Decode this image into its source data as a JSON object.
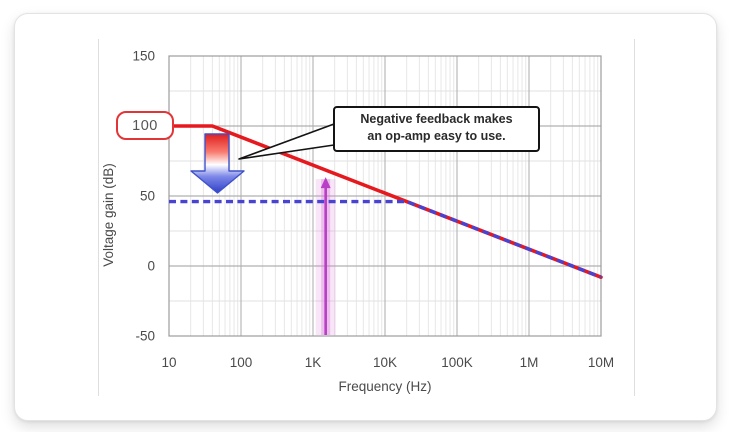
{
  "colors": {
    "open_loop_red": "#e6191f",
    "closed_loop_blue": "#4943d2",
    "signal_magenta": "#b83fc6",
    "signal_halo": "#e9a9e9",
    "grid_major": "#b9b9b9",
    "grid_minor": "#e7e7e7",
    "plot_border": "#9c9c9c",
    "badge_border": "#e23538",
    "callout_border": "#141414"
  },
  "chart_data": {
    "type": "line",
    "title": "",
    "x_axis": {
      "label": "Frequency (Hz)",
      "scale": "log",
      "range_hz": [
        10,
        10000000
      ],
      "ticks": [
        "10",
        "100",
        "1K",
        "10K",
        "100K",
        "1M",
        "10M"
      ]
    },
    "y_axis": {
      "label": "Voltage gain (dB)",
      "range_db": [
        -50,
        150
      ],
      "ticks": [
        "150",
        "100",
        "50",
        "0",
        "-50"
      ],
      "highlighted_tick": "100"
    },
    "grid": true,
    "series": [
      {
        "name": "open-loop-gain",
        "style": "solid",
        "color": "#e6191f",
        "points": [
          {
            "f": 10,
            "db": 100
          },
          {
            "f": 40,
            "db": 100
          },
          {
            "f": 10000000,
            "db": -8
          }
        ]
      },
      {
        "name": "closed-loop-gain",
        "style": "dashed",
        "color": "#4943d2",
        "points": [
          {
            "f": 10,
            "db": 46
          },
          {
            "f": 20000,
            "db": 46
          },
          {
            "f": 10000000,
            "db": -8
          }
        ]
      }
    ],
    "markers": {
      "signal_frequency": {
        "f": 1500,
        "db_top": 63.5,
        "color": "#b83fc6",
        "halo_color": "#e9a9e9"
      },
      "gain_reduction_arrow": {
        "from_db": 100,
        "to_db": 47,
        "gradient": [
          "#e01f1f",
          "#ffffff",
          "#2f41c8"
        ]
      }
    },
    "annotation": {
      "line1": "Negative feedback makes",
      "line2": "an op-amp easy to use."
    }
  }
}
